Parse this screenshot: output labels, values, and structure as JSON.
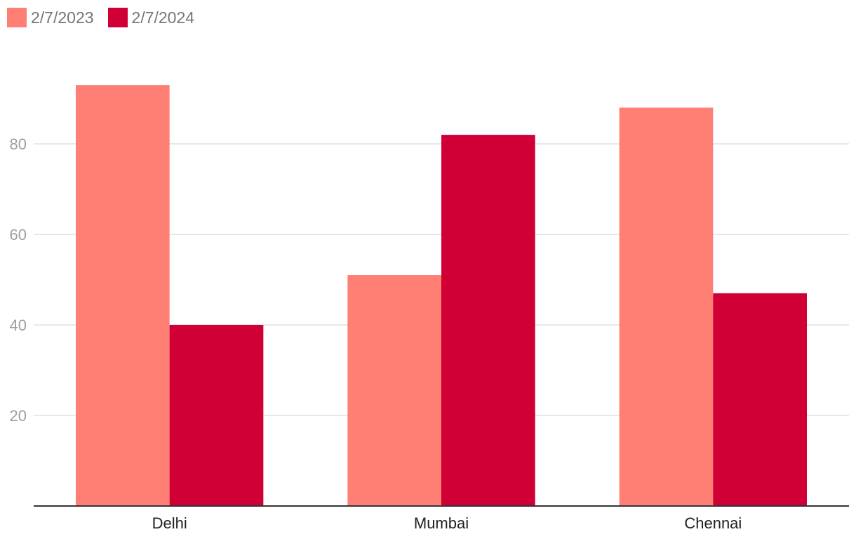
{
  "colors": {
    "series_1": "#ff7f74",
    "series_2": "#d00037",
    "gridline": "#e0e0e0",
    "baseline": "#333333",
    "y_tick_text": "#9e9e9e",
    "x_tick_text": "#212121",
    "legend_text": "#757575"
  },
  "legend": {
    "position": "top-left",
    "items": [
      {
        "label": "2/7/2023"
      },
      {
        "label": "2/7/2024"
      }
    ]
  },
  "chart_data": {
    "type": "bar",
    "title": "",
    "xlabel": "",
    "ylabel": "",
    "categories": [
      "Delhi",
      "Mumbai",
      "Chennai"
    ],
    "series": [
      {
        "name": "2/7/2023",
        "values": [
          93,
          51,
          88
        ]
      },
      {
        "name": "2/7/2024",
        "values": [
          40,
          82,
          47
        ]
      }
    ],
    "ylim": [
      0,
      100
    ],
    "yticks": [
      20,
      40,
      60,
      80
    ],
    "grid": true,
    "legend_position": "top-left"
  }
}
